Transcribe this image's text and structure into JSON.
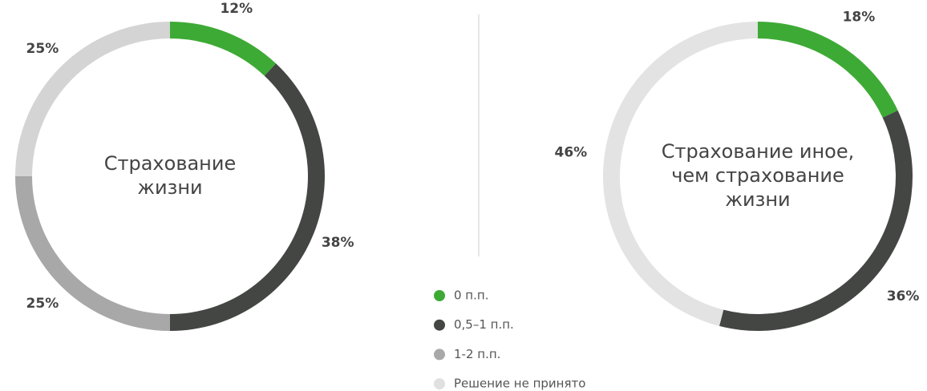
{
  "chart_data": [
    {
      "type": "pie",
      "title": [
        "Страхование",
        "жизни"
      ],
      "values": [
        12,
        38,
        25,
        25
      ],
      "value_labels": [
        "12%",
        "38%",
        "25%",
        "25%"
      ],
      "colors": [
        "#3daa35",
        "#444644",
        "#a8a8a8",
        "#d4d4d4"
      ]
    },
    {
      "type": "pie",
      "title": [
        "Страхование иное,",
        "чем страхование",
        "жизни"
      ],
      "values": [
        18,
        36,
        null,
        46
      ],
      "value_labels": [
        "18%",
        "36%",
        null,
        "46%"
      ],
      "colors": [
        "#3daa35",
        "#444644",
        "#a8a8a8",
        "#e3e3e3"
      ]
    }
  ],
  "legend": {
    "categories": [
      "0 п.п.",
      "0,5–1 п.п.",
      "1-2 п.п.",
      "Решение не принято"
    ],
    "colors": [
      "#3daa35",
      "#444644",
      "#a8a8a8",
      "#e0e0e0"
    ]
  }
}
